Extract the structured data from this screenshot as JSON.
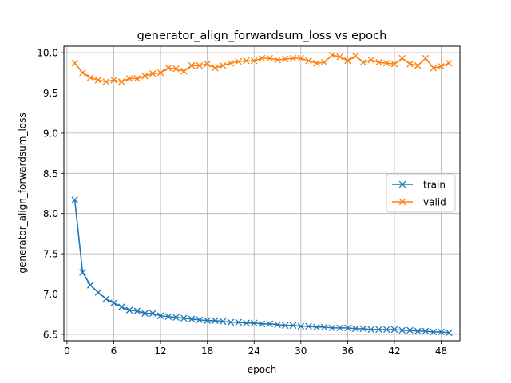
{
  "chart_data": {
    "type": "line",
    "title": "generator_align_forwardsum_loss vs epoch",
    "xlabel": "epoch",
    "ylabel": "generator_align_forwardsum_loss",
    "xlim": [
      -0.4,
      50.4
    ],
    "ylim": [
      6.42,
      10.08
    ],
    "xticks": [
      0,
      6,
      12,
      18,
      24,
      30,
      36,
      42,
      48
    ],
    "xtick_labels": [
      "0",
      "6",
      "12",
      "18",
      "24",
      "30",
      "36",
      "42",
      "48"
    ],
    "yticks": [
      6.5,
      7.0,
      7.5,
      8.0,
      8.5,
      9.0,
      9.5,
      10.0
    ],
    "ytick_labels": [
      "6.5",
      "7.0",
      "7.5",
      "8.0",
      "8.5",
      "9.0",
      "9.5",
      "10.0"
    ],
    "grid": true,
    "legend_position": "right",
    "marker": "x",
    "x": [
      1,
      2,
      3,
      4,
      5,
      6,
      7,
      8,
      9,
      10,
      11,
      12,
      13,
      14,
      15,
      16,
      17,
      18,
      19,
      20,
      21,
      22,
      23,
      24,
      25,
      26,
      27,
      28,
      29,
      30,
      31,
      32,
      33,
      34,
      35,
      36,
      37,
      38,
      39,
      40,
      41,
      42,
      43,
      44,
      45,
      46,
      47,
      48,
      49
    ],
    "series": [
      {
        "name": "train",
        "color": "#1f77b4",
        "values": [
          8.17,
          7.27,
          7.11,
          7.02,
          6.94,
          6.89,
          6.84,
          6.8,
          6.79,
          6.76,
          6.76,
          6.73,
          6.72,
          6.71,
          6.7,
          6.69,
          6.68,
          6.67,
          6.67,
          6.66,
          6.65,
          6.65,
          6.64,
          6.64,
          6.63,
          6.63,
          6.62,
          6.61,
          6.61,
          6.6,
          6.6,
          6.59,
          6.59,
          6.58,
          6.58,
          6.58,
          6.57,
          6.57,
          6.56,
          6.56,
          6.56,
          6.56,
          6.55,
          6.55,
          6.54,
          6.54,
          6.53,
          6.53,
          6.52
        ]
      },
      {
        "name": "valid",
        "color": "#ff7f0e",
        "values": [
          9.87,
          9.75,
          9.69,
          9.66,
          9.64,
          9.66,
          9.64,
          9.68,
          9.68,
          9.71,
          9.74,
          9.75,
          9.81,
          9.8,
          9.77,
          9.84,
          9.84,
          9.86,
          9.81,
          9.84,
          9.87,
          9.89,
          9.9,
          9.9,
          9.93,
          9.93,
          9.91,
          9.92,
          9.93,
          9.93,
          9.9,
          9.87,
          9.88,
          9.97,
          9.95,
          9.9,
          9.96,
          9.88,
          9.91,
          9.88,
          9.87,
          9.86,
          9.93,
          9.86,
          9.84,
          9.93,
          9.81,
          9.83,
          9.87
        ]
      }
    ]
  }
}
